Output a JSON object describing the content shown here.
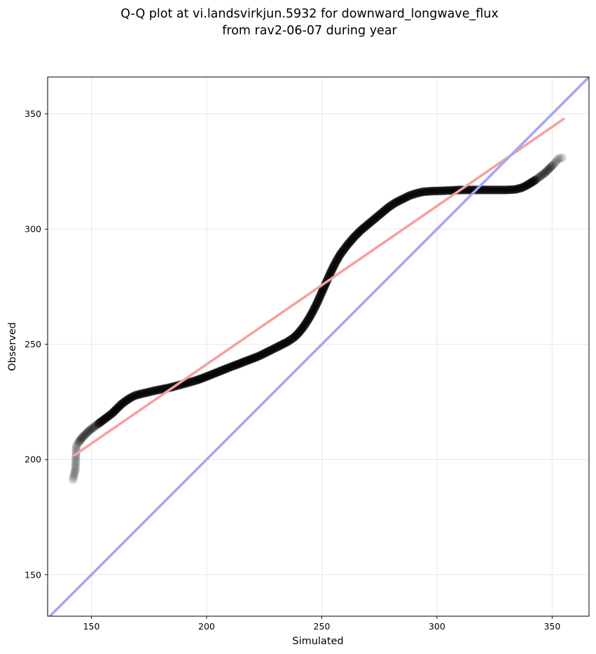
{
  "chart_data": {
    "type": "scatter",
    "title_line1": "Q-Q plot at vi.landsvirkjun.5932 for downward_longwave_flux",
    "title_line2": "from rav2-06-07 during year",
    "xlabel": "Simulated",
    "ylabel": "Observed",
    "xlim": [
      131,
      366
    ],
    "ylim": [
      132,
      366
    ],
    "xticks": [
      150,
      200,
      250,
      300,
      350
    ],
    "yticks": [
      150,
      200,
      250,
      300,
      350
    ],
    "grid": true,
    "series": [
      {
        "kind": "quantile-points",
        "color": "#000000",
        "points": [
          [
            142.0,
            191.0
          ],
          [
            142.6,
            194.0
          ],
          [
            143.0,
            195.0
          ],
          [
            143.5,
            206.0
          ],
          [
            144.5,
            207.5
          ],
          [
            146.0,
            209.5
          ],
          [
            147.5,
            211.0
          ],
          [
            149.0,
            212.5
          ],
          [
            151.0,
            214.0
          ],
          [
            153.0,
            215.5
          ],
          [
            155.0,
            217.0
          ],
          [
            157.0,
            218.5
          ],
          [
            159.0,
            220.0
          ],
          [
            161.0,
            222.0
          ],
          [
            163.0,
            224.0
          ],
          [
            165.0,
            225.5
          ],
          [
            167.0,
            226.8
          ],
          [
            169.0,
            227.8
          ],
          [
            172.0,
            228.6
          ],
          [
            175.0,
            229.3
          ],
          [
            178.0,
            230.0
          ],
          [
            181.0,
            230.6
          ],
          [
            184.0,
            231.2
          ],
          [
            187.0,
            232.0
          ],
          [
            190.0,
            232.8
          ],
          [
            193.0,
            233.6
          ],
          [
            196.0,
            234.5
          ],
          [
            199.0,
            235.6
          ],
          [
            202.0,
            236.8
          ],
          [
            205.0,
            238.0
          ],
          [
            208.0,
            239.2
          ],
          [
            211.0,
            240.4
          ],
          [
            214.0,
            241.5
          ],
          [
            217.0,
            242.7
          ],
          [
            220.0,
            243.8
          ],
          [
            223.0,
            245.0
          ],
          [
            226.0,
            246.5
          ],
          [
            229.0,
            248.0
          ],
          [
            232.0,
            249.5
          ],
          [
            235.0,
            251.0
          ],
          [
            238.0,
            253.0
          ],
          [
            240.0,
            255.0
          ],
          [
            242.0,
            257.5
          ],
          [
            244.0,
            260.5
          ],
          [
            246.0,
            264.0
          ],
          [
            248.0,
            268.0
          ],
          [
            250.0,
            272.5
          ],
          [
            252.0,
            277.0
          ],
          [
            254.0,
            281.5
          ],
          [
            256.0,
            285.5
          ],
          [
            258.0,
            289.0
          ],
          [
            261.0,
            293.0
          ],
          [
            264.0,
            296.5
          ],
          [
            267.0,
            299.5
          ],
          [
            270.0,
            302.0
          ],
          [
            273.0,
            304.5
          ],
          [
            276.0,
            307.0
          ],
          [
            279.0,
            309.5
          ],
          [
            282.0,
            311.5
          ],
          [
            285.0,
            313.0
          ],
          [
            288.0,
            314.5
          ],
          [
            291.0,
            315.5
          ],
          [
            294.0,
            316.2
          ],
          [
            298.0,
            316.5
          ],
          [
            302.0,
            316.6
          ],
          [
            306.0,
            316.8
          ],
          [
            310.0,
            317.0
          ],
          [
            315.0,
            317.0
          ],
          [
            320.0,
            317.0
          ],
          [
            325.0,
            317.0
          ],
          [
            330.0,
            317.0
          ],
          [
            334.0,
            317.2
          ],
          [
            337.0,
            318.0
          ],
          [
            339.0,
            319.0
          ],
          [
            341.0,
            320.2
          ],
          [
            343.0,
            321.5
          ],
          [
            345.0,
            323.0
          ],
          [
            347.0,
            324.5
          ],
          [
            349.0,
            326.5
          ],
          [
            350.5,
            328.0
          ],
          [
            351.5,
            329.0
          ],
          [
            352.5,
            330.5
          ],
          [
            354.5,
            331.0
          ]
        ]
      },
      {
        "kind": "regression-line",
        "color": "#f8a0a0",
        "points": [
          [
            142.5,
            201.8
          ],
          [
            355.0,
            347.8
          ]
        ]
      },
      {
        "kind": "identity-line",
        "color": "#a6a6f6",
        "points": [
          [
            131.0,
            131.0
          ],
          [
            366.0,
            366.0
          ]
        ]
      }
    ]
  }
}
